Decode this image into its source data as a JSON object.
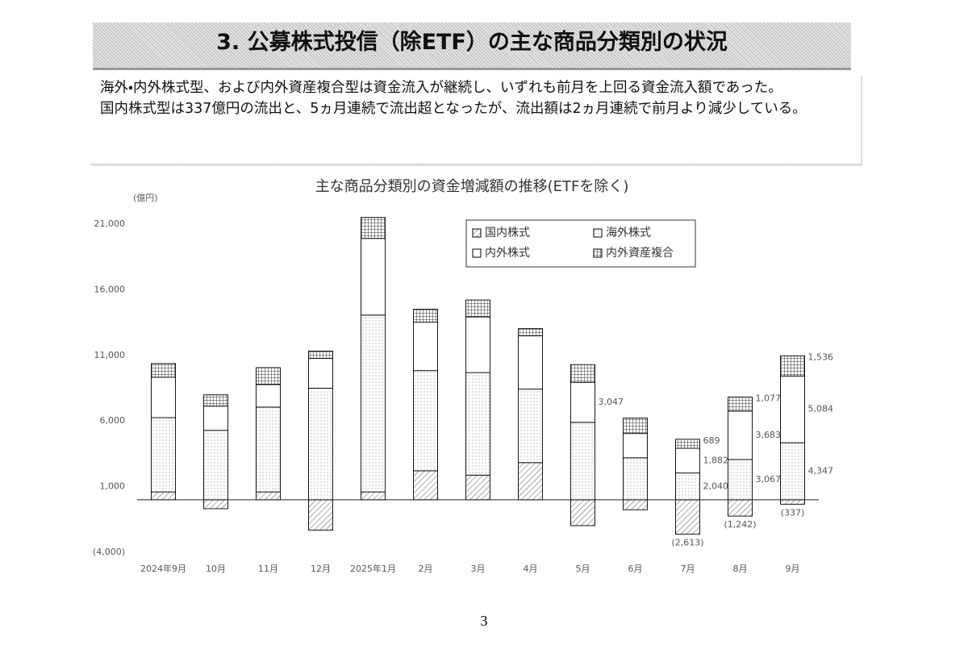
{
  "header": {
    "title": "3. 公募株式投信（除ETF）の主な商品分類別の状況"
  },
  "paragraphs": [
    "海外・内外株式型、および内外資産複合型は資金流入が継続し、いずれも前月を上回る資金流入額であった。",
    "国内株式型は337億円の流出と、5ヵ月連続で流出超となったが、流出額は2ヵ月連続で前月より減少している。"
  ],
  "chart_data": {
    "type": "stacked_bar",
    "title": "主な商品分類別の資金増減額の推移(ETFを除く)",
    "y_label": "(億円)",
    "categories": [
      "2024年9月",
      "10月",
      "11月",
      "12月",
      "2025年1月",
      "2月",
      "3月",
      "4月",
      "5月",
      "6月",
      "7月",
      "8月",
      "9月"
    ],
    "series": [
      {
        "name": "国内株式",
        "color": "#000000",
        "pattern": "hatch",
        "values": [
          600,
          -680,
          600,
          -2310,
          600,
          2210,
          1880,
          2830,
          -1970,
          -760,
          -2613,
          -1242,
          -337
        ],
        "value_labels": [
          null,
          null,
          null,
          null,
          null,
          null,
          null,
          null,
          null,
          null,
          "(2,613)",
          "(1,242)",
          "(337)"
        ]
      },
      {
        "name": "海外株式",
        "color": "#000000",
        "pattern": "dots",
        "values": [
          5660,
          5290,
          6460,
          8500,
          13470,
          7630,
          7810,
          5600,
          5900,
          3200,
          2040,
          3067,
          4347
        ],
        "value_labels": [
          null,
          null,
          null,
          null,
          null,
          null,
          null,
          null,
          null,
          null,
          "2,040",
          "3,067",
          "4,347"
        ]
      },
      {
        "name": "内外株式",
        "color": "#000000",
        "pattern": "none",
        "values": [
          3075,
          1845,
          1720,
          2280,
          5840,
          3690,
          4240,
          4060,
          3047,
          1850,
          1882,
          3683,
          5084
        ],
        "value_labels": [
          null,
          null,
          null,
          null,
          null,
          null,
          null,
          null,
          "3,047",
          null,
          "1,882",
          "3,683",
          "5,084"
        ]
      },
      {
        "name": "内外資産複合",
        "color": "#000000",
        "pattern": "grid",
        "values": [
          1045,
          860,
          1290,
          550,
          1600,
          985,
          1290,
          550,
          1350,
          1170,
          689,
          1077,
          1536
        ],
        "value_labels": [
          null,
          null,
          null,
          null,
          null,
          null,
          null,
          null,
          null,
          null,
          "689",
          "1,077",
          "1,536"
        ]
      }
    ],
    "ylim": [
      -4000,
      21000
    ],
    "yticks": [
      {
        "value": -4000,
        "label": "(4,000)"
      },
      {
        "value": 1000,
        "label": "1,000"
      },
      {
        "value": 6000,
        "label": "6,000"
      },
      {
        "value": 11000,
        "label": "11,000"
      },
      {
        "value": 16000,
        "label": "16,000"
      },
      {
        "value": 21000,
        "label": "21,000"
      }
    ],
    "grid": false,
    "legend": "top-right"
  },
  "page_number": "3"
}
